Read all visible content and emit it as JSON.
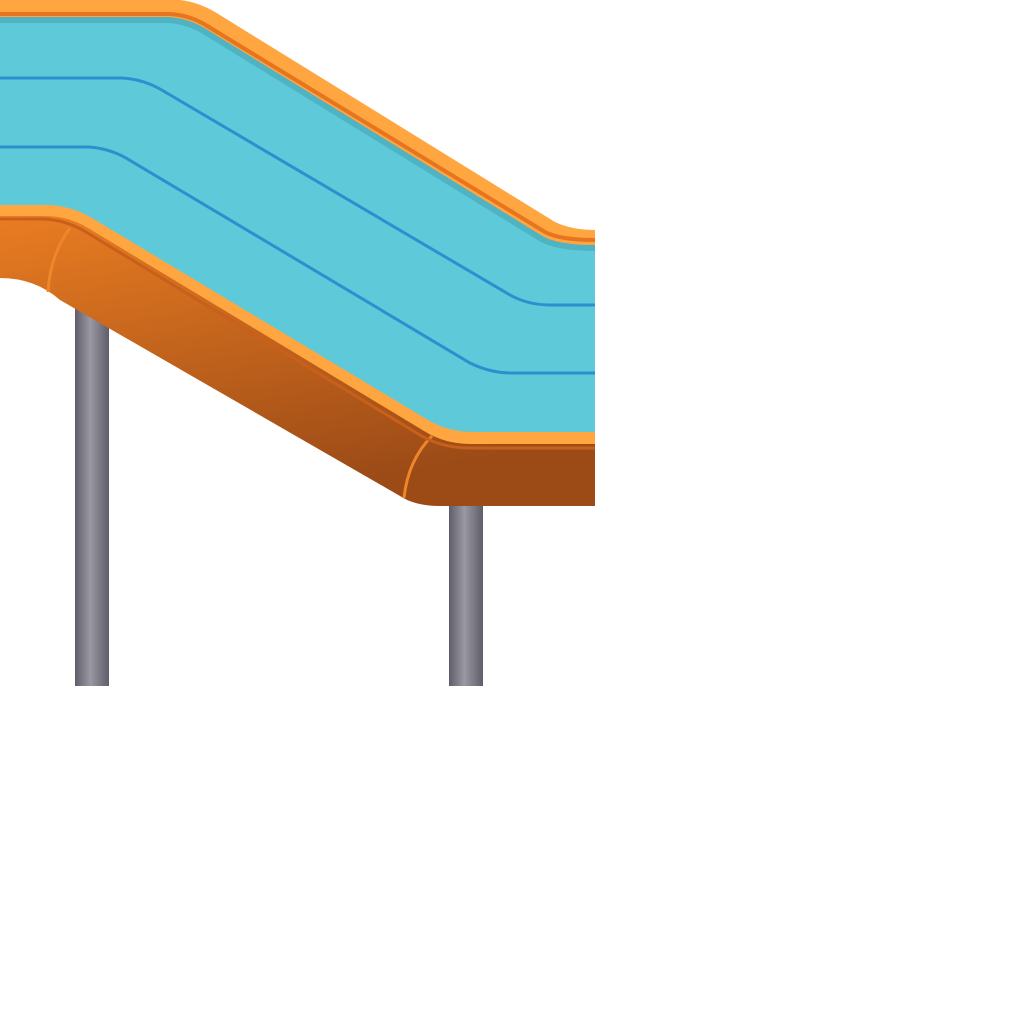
{
  "scene": {
    "subject": "slide-illustration",
    "colors": {
      "background": "#ffffff",
      "chute_surface": "#5ec9d8",
      "chute_lane_lines": "#2e8fcf",
      "rim_highlight": "#ffa640",
      "rim_edge": "#e7741e",
      "body_light": "#ea7d22",
      "body_dark": "#9c4b17",
      "support_light": "#9a99a3",
      "support_dark": "#5e5d68"
    },
    "icons": [
      "slide-chute",
      "slide-support-post-left",
      "slide-support-post-right"
    ]
  }
}
